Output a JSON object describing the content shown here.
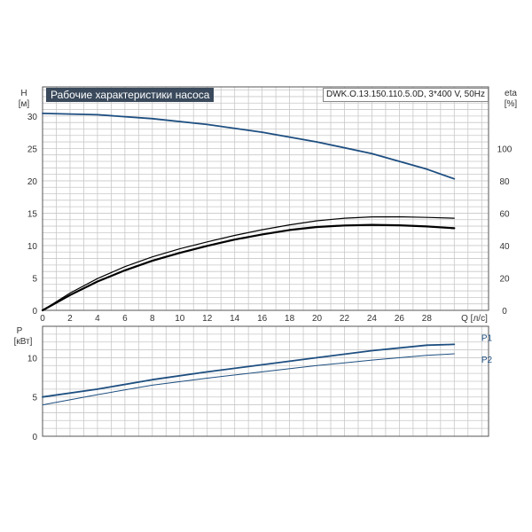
{
  "title": "Рабочие характеристики насоса",
  "model": "DWK.O.13.150.110.5.0D, 3*400 V, 50Hz",
  "colors": {
    "primary": "#1d4e80",
    "secondary": "#000000",
    "grid": "#c8c8c8",
    "frame": "#555555",
    "title_bg": "#3a4a5c"
  },
  "chart_data": [
    {
      "type": "line",
      "panel": "head-efficiency",
      "xlabel": "Q [л/с]",
      "x_ticks": [
        "0",
        "2",
        "4",
        "6",
        "8",
        "10",
        "12",
        "14",
        "16",
        "18",
        "20",
        "22",
        "24",
        "26",
        "28"
      ],
      "xlim": [
        0,
        32.5
      ],
      "ylabel": "H\n[м]",
      "y_ticks": [
        "0",
        "5",
        "10",
        "15",
        "20",
        "25",
        "30"
      ],
      "ylim": [
        0,
        34.5
      ],
      "y2label": "eta\n[%]",
      "y2_ticks": [
        "0",
        "20",
        "40",
        "60",
        "80",
        "100"
      ],
      "y2lim": [
        0,
        138
      ],
      "grid": true,
      "series": [
        {
          "axis": "y",
          "color": "#1d4e80",
          "width": 1.8,
          "x": [
            0,
            4,
            8,
            12,
            16,
            20,
            24,
            28,
            30
          ],
          "values": [
            30.4,
            30.2,
            29.6,
            28.7,
            27.5,
            26.0,
            24.2,
            21.8,
            20.3
          ]
        },
        {
          "axis": "y2",
          "color": "#000000",
          "width": 1.2,
          "x": [
            0,
            2,
            4,
            6,
            8,
            10,
            12,
            14,
            16,
            18,
            20,
            22,
            24,
            26,
            28,
            30
          ],
          "values": [
            0,
            10.7,
            19.6,
            27.0,
            33.0,
            38.0,
            42.3,
            46.3,
            49.8,
            52.8,
            55.3,
            56.9,
            57.7,
            57.8,
            57.4,
            56.9
          ]
        },
        {
          "axis": "y2",
          "color": "#000000",
          "width": 2.2,
          "x": [
            0,
            2,
            4,
            6,
            8,
            10,
            12,
            14,
            16,
            18,
            20,
            22,
            24,
            26,
            28,
            30
          ],
          "values": [
            0,
            9.4,
            17.8,
            24.7,
            30.6,
            35.5,
            39.8,
            43.7,
            46.9,
            49.6,
            51.5,
            52.4,
            52.8,
            52.5,
            51.8,
            50.7
          ]
        }
      ]
    },
    {
      "type": "line",
      "panel": "power",
      "ylabel": "P\n[кВт]",
      "y_ticks": [
        "0",
        "5",
        "10"
      ],
      "ylim": [
        0,
        14
      ],
      "xlim": [
        0,
        32.5
      ],
      "grid": true,
      "legend": "right",
      "series": [
        {
          "name": "P1",
          "color": "#1d4e80",
          "width": 1.8,
          "x": [
            0,
            4,
            8,
            12,
            16,
            20,
            24,
            28,
            30
          ],
          "values": [
            5.0,
            6.0,
            7.2,
            8.2,
            9.1,
            10.0,
            10.9,
            11.6,
            11.7
          ]
        },
        {
          "name": "P2",
          "color": "#1d4e80",
          "width": 1.0,
          "x": [
            0,
            4,
            8,
            12,
            16,
            20,
            24,
            28,
            30
          ],
          "values": [
            4.0,
            5.3,
            6.5,
            7.4,
            8.2,
            9.0,
            9.7,
            10.3,
            10.5
          ]
        }
      ]
    }
  ]
}
